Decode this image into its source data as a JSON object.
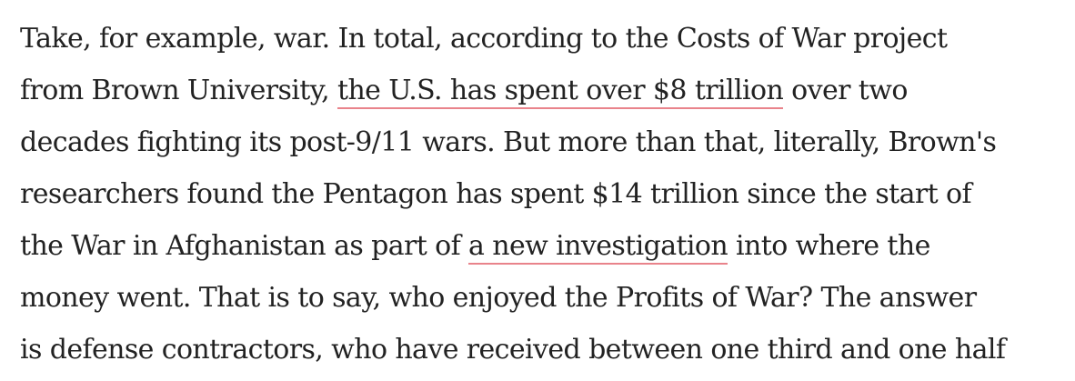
{
  "article": {
    "link_underline_color": "#e9838b",
    "text_color": "#222222",
    "lines": [
      {
        "text": "Take, for example, war. In total, according to the Costs of War project"
      },
      {
        "before": "from Brown University, ",
        "link": "the U.S. has spent over $8 trillion",
        "after": " over two"
      },
      {
        "text": "decades fighting its post-9/11 wars. But more than that, literally, Brown's"
      },
      {
        "text": "researchers found the Pentagon has spent $14 trillion since the start of"
      },
      {
        "before": "the War in Afghanistan as part of ",
        "link": "a new investigation",
        "after": " into where the"
      },
      {
        "text": "money went. That is to say, who enjoyed the Profits of War? The answer"
      },
      {
        "text": "is defense contractors, who have received between one third and one half"
      }
    ]
  }
}
